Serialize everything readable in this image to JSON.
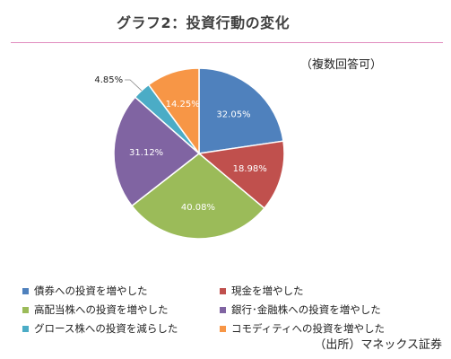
{
  "header": {
    "title": "グラフ2：投資行動の変化",
    "note": "（複数回答可）"
  },
  "footer": {
    "source": "（出所）マネックス証券"
  },
  "chart_data": {
    "type": "pie",
    "title": "グラフ2：投資行動の変化",
    "note": "（複数回答可）",
    "unit": "%",
    "slices": [
      {
        "name": "債券への投資を増やした",
        "value": 32.05,
        "label": "32.05%",
        "color": "#4f81bd"
      },
      {
        "name": "現金を増やした",
        "value": 18.98,
        "label": "18.98%",
        "color": "#c0504d"
      },
      {
        "name": "高配当株への投資を増やした",
        "value": 40.08,
        "label": "40.08%",
        "color": "#9bbb59"
      },
      {
        "name": "銀行･金融株への投資を増やした",
        "value": 31.12,
        "label": "31.12%",
        "color": "#8064a2"
      },
      {
        "name": "グロース株への投資を減らした",
        "value": 4.85,
        "label": "4.85%",
        "color": "#4bacc6"
      },
      {
        "name": "コモディティへの投資を増やした",
        "value": 14.25,
        "label": "14.25%",
        "color": "#f79646"
      }
    ],
    "legend_order": [
      0,
      1,
      2,
      3,
      4,
      5
    ],
    "legend_position": "bottom"
  }
}
